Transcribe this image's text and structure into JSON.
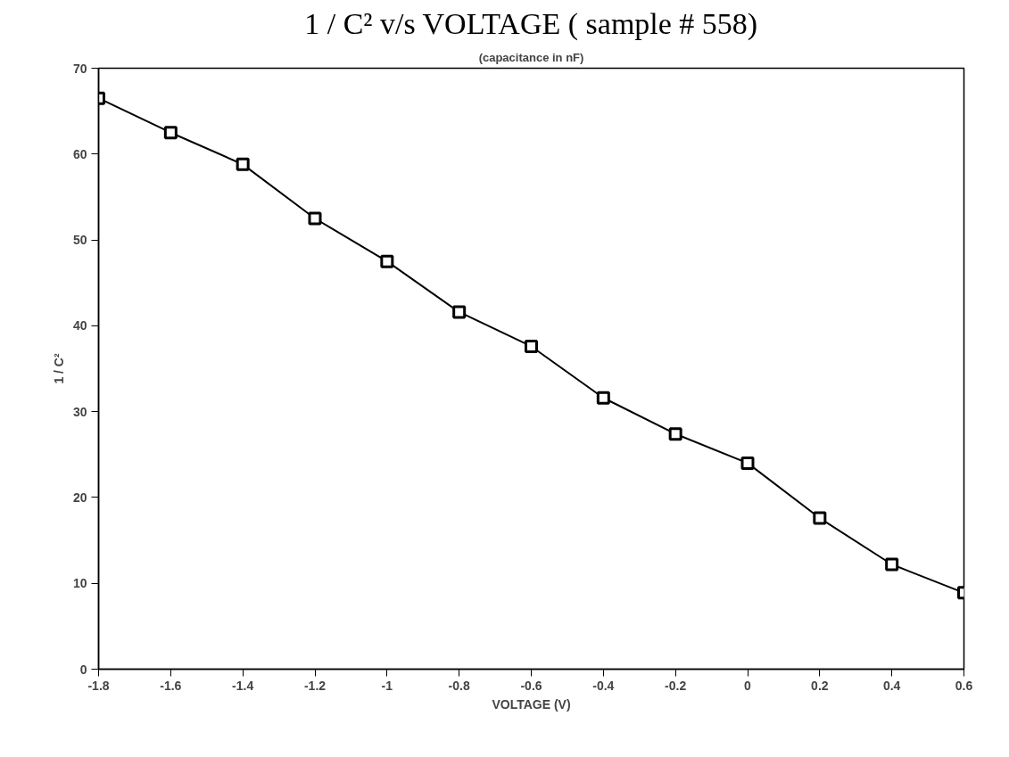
{
  "chart_data": {
    "type": "line",
    "title": "1 / C² v/s VOLTAGE ( sample # 558)",
    "subtitle": "(capacitance in nF)",
    "xlabel": "VOLTAGE (V)",
    "ylabel": "1 / C²",
    "x": [
      -1.8,
      -1.6,
      -1.4,
      -1.2,
      -1,
      -0.8,
      -0.6,
      -0.4,
      -0.2,
      0,
      0.2,
      0.4,
      0.6
    ],
    "series": [
      {
        "color": "#000000",
        "values": [
          66.5,
          62.5,
          58.8,
          52.5,
          47.5,
          41.6,
          37.6,
          31.6,
          27.4,
          24.0,
          17.6,
          12.2,
          8.9
        ]
      }
    ],
    "xlim": [
      -1.8,
      0.6
    ],
    "ylim": [
      0,
      70
    ],
    "xticks": [
      -1.8,
      -1.6,
      -1.4,
      -1.2,
      -1,
      -0.8,
      -0.6,
      -0.4,
      -0.2,
      0,
      0.2,
      0.4,
      0.6
    ],
    "yticks": [
      0,
      10,
      20,
      30,
      40,
      50,
      60,
      70
    ],
    "grid": false,
    "marker": "square",
    "line_style": "solid"
  }
}
